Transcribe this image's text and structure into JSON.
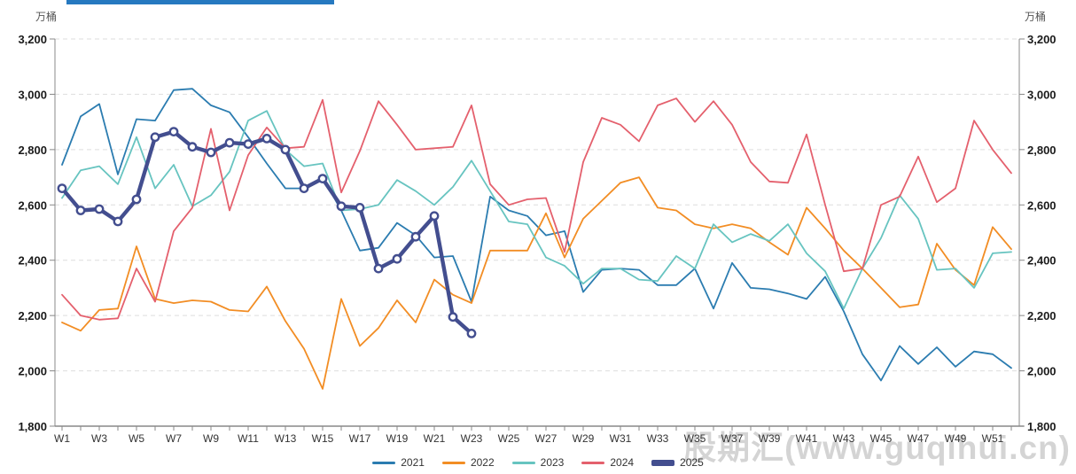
{
  "unit_left": "万桶",
  "unit_right": "万桶",
  "watermark": "股期汇(www.guqihui.cn)",
  "top_accent_color": "#2679c0",
  "axis": {
    "x_tick_labels": [
      "W1",
      "W3",
      "W5",
      "W7",
      "W9",
      "W11",
      "W13",
      "W15",
      "W17",
      "W19",
      "W21",
      "W23",
      "W25",
      "W27",
      "W29",
      "W31",
      "W33",
      "W35",
      "W37",
      "W39",
      "W41",
      "W43",
      "W45",
      "W47",
      "W49",
      "W51"
    ],
    "weeks_total": 52
  },
  "chart_data": {
    "type": "line",
    "title": "",
    "xlabel": "",
    "ylabel": "万桶",
    "ylim": [
      1800,
      3200
    ],
    "y_ticks": [
      1800,
      2000,
      2200,
      2400,
      2600,
      2800,
      3000,
      3200
    ],
    "grid": "horizontal-dashed",
    "legend_position": "bottom-center",
    "x_unit": "week",
    "series": [
      {
        "name": "2021",
        "color": "#2b7cb0",
        "width": 1.8,
        "values": [
          2745,
          2920,
          2965,
          2710,
          2910,
          2905,
          3015,
          3020,
          2960,
          2935,
          2845,
          2750,
          2660,
          2660,
          2700,
          2580,
          2435,
          2445,
          2535,
          2490,
          2410,
          2415,
          2250,
          2630,
          2580,
          2560,
          2490,
          2505,
          2285,
          2365,
          2370,
          2365,
          2310,
          2310,
          2370,
          2225,
          2390,
          2300,
          2295,
          2280,
          2260,
          2340,
          2215,
          2060,
          1965,
          2090,
          2025,
          2085,
          2015,
          2070,
          2060,
          2010
        ]
      },
      {
        "name": "2022",
        "color": "#f28d24",
        "width": 1.8,
        "values": [
          2175,
          2145,
          2220,
          2225,
          2450,
          2260,
          2245,
          2255,
          2250,
          2220,
          2215,
          2305,
          2180,
          2080,
          1935,
          2260,
          2090,
          2155,
          2255,
          2175,
          2330,
          2275,
          2245,
          2435,
          2435,
          2435,
          2570,
          2410,
          2550,
          2615,
          2680,
          2700,
          2590,
          2580,
          2530,
          2515,
          2530,
          2515,
          2465,
          2420,
          2590,
          2515,
          2435,
          2370,
          2300,
          2230,
          2240,
          2460,
          2365,
          2310,
          2520,
          2440
        ]
      },
      {
        "name": "2023",
        "color": "#67c4c0",
        "width": 1.8,
        "values": [
          2625,
          2725,
          2740,
          2675,
          2845,
          2660,
          2745,
          2595,
          2635,
          2720,
          2905,
          2940,
          2800,
          2740,
          2750,
          2580,
          2585,
          2600,
          2690,
          2650,
          2600,
          2665,
          2760,
          2650,
          2540,
          2530,
          2410,
          2380,
          2315,
          2370,
          2370,
          2330,
          2325,
          2415,
          2370,
          2530,
          2465,
          2495,
          2470,
          2530,
          2425,
          2360,
          2225,
          2370,
          2480,
          2635,
          2550,
          2365,
          2370,
          2300,
          2425,
          2430
        ]
      },
      {
        "name": "2024",
        "color": "#e4606d",
        "width": 1.8,
        "values": [
          2275,
          2200,
          2185,
          2190,
          2370,
          2250,
          2505,
          2590,
          2875,
          2580,
          2780,
          2880,
          2805,
          2810,
          2980,
          2645,
          2795,
          2975,
          2890,
          2800,
          2805,
          2810,
          2960,
          2675,
          2600,
          2620,
          2625,
          2430,
          2755,
          2915,
          2890,
          2830,
          2960,
          2985,
          2900,
          2975,
          2890,
          2755,
          2685,
          2680,
          2855,
          2600,
          2360,
          2370,
          2600,
          2630,
          2775,
          2610,
          2660,
          2905,
          2800,
          2715
        ]
      },
      {
        "name": "2025",
        "color": "#434e8f",
        "width": 4.4,
        "marker": "circle",
        "values": [
          2660,
          2580,
          2585,
          2540,
          2620,
          2845,
          2865,
          2810,
          2790,
          2825,
          2820,
          2840,
          2800,
          2660,
          2695,
          2595,
          2590,
          2370,
          2405,
          2485,
          2560,
          2195,
          2135
        ]
      }
    ]
  }
}
